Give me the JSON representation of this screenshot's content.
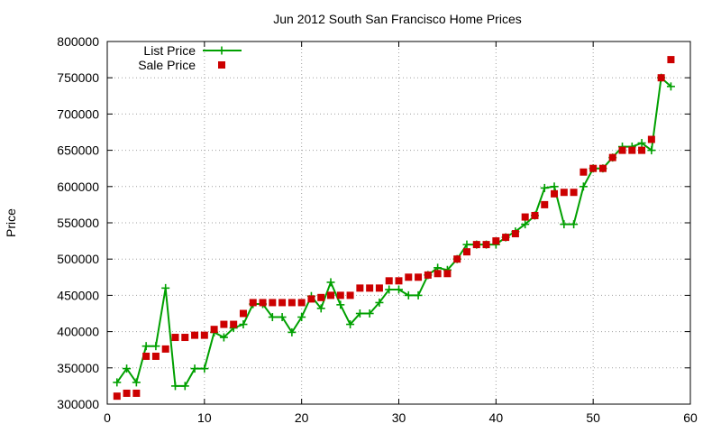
{
  "chart_data": {
    "type": "line",
    "title": "Jun 2012 South San Francisco Home Prices",
    "xlabel": "",
    "ylabel": "Price",
    "xlim": [
      0,
      60
    ],
    "ylim": [
      300000,
      800000
    ],
    "xticks": [
      0,
      10,
      20,
      30,
      40,
      50,
      60
    ],
    "yticks": [
      300000,
      350000,
      400000,
      450000,
      500000,
      550000,
      600000,
      650000,
      700000,
      750000,
      800000
    ],
    "grid": true,
    "legend": "top-left",
    "series": [
      {
        "name": "List Price",
        "style": "line-markers-plus",
        "color": "#00a000",
        "points": [
          [
            1,
            330000
          ],
          [
            2,
            349000
          ],
          [
            3,
            330000
          ],
          [
            4,
            380000
          ],
          [
            5,
            380000
          ],
          [
            6,
            460000
          ],
          [
            7,
            325000
          ],
          [
            8,
            325000
          ],
          [
            9,
            349000
          ],
          [
            10,
            349000
          ],
          [
            11,
            399000
          ],
          [
            12,
            392000
          ],
          [
            13,
            405000
          ],
          [
            14,
            410000
          ],
          [
            15,
            438000
          ],
          [
            16,
            438000
          ],
          [
            17,
            420000
          ],
          [
            18,
            420000
          ],
          [
            19,
            399000
          ],
          [
            20,
            420000
          ],
          [
            21,
            449000
          ],
          [
            22,
            432000
          ],
          [
            23,
            468000
          ],
          [
            24,
            437000
          ],
          [
            25,
            410000
          ],
          [
            26,
            425000
          ],
          [
            27,
            425000
          ],
          [
            28,
            440000
          ],
          [
            29,
            458000
          ],
          [
            30,
            458000
          ],
          [
            31,
            450000
          ],
          [
            32,
            450000
          ],
          [
            33,
            478000
          ],
          [
            34,
            488000
          ],
          [
            35,
            485000
          ],
          [
            36,
            500000
          ],
          [
            37,
            520000
          ],
          [
            38,
            520000
          ],
          [
            39,
            520000
          ],
          [
            40,
            520000
          ],
          [
            41,
            530000
          ],
          [
            42,
            538000
          ],
          [
            43,
            548000
          ],
          [
            44,
            560000
          ],
          [
            45,
            598000
          ],
          [
            46,
            600000
          ],
          [
            47,
            548000
          ],
          [
            48,
            548000
          ],
          [
            49,
            600000
          ],
          [
            50,
            625000
          ],
          [
            51,
            625000
          ],
          [
            52,
            640000
          ],
          [
            53,
            655000
          ],
          [
            54,
            655000
          ],
          [
            55,
            660000
          ],
          [
            56,
            650000
          ],
          [
            57,
            750000
          ],
          [
            58,
            738000
          ]
        ]
      },
      {
        "name": "Sale Price",
        "style": "markers-square",
        "color": "#cc0000",
        "points": [
          [
            1,
            311000
          ],
          [
            2,
            315000
          ],
          [
            3,
            315000
          ],
          [
            4,
            366000
          ],
          [
            5,
            366000
          ],
          [
            6,
            376000
          ],
          [
            7,
            392000
          ],
          [
            8,
            392000
          ],
          [
            9,
            395000
          ],
          [
            10,
            395000
          ],
          [
            11,
            403000
          ],
          [
            12,
            410000
          ],
          [
            13,
            410000
          ],
          [
            14,
            425000
          ],
          [
            15,
            440000
          ],
          [
            16,
            440000
          ],
          [
            17,
            440000
          ],
          [
            18,
            440000
          ],
          [
            19,
            440000
          ],
          [
            20,
            440000
          ],
          [
            21,
            445000
          ],
          [
            22,
            447000
          ],
          [
            23,
            450000
          ],
          [
            24,
            450000
          ],
          [
            25,
            450000
          ],
          [
            26,
            460000
          ],
          [
            27,
            460000
          ],
          [
            28,
            460000
          ],
          [
            29,
            470000
          ],
          [
            30,
            470000
          ],
          [
            31,
            475000
          ],
          [
            32,
            475000
          ],
          [
            33,
            478000
          ],
          [
            34,
            480000
          ],
          [
            35,
            480000
          ],
          [
            36,
            500000
          ],
          [
            37,
            510000
          ],
          [
            38,
            520000
          ],
          [
            39,
            520000
          ],
          [
            40,
            525000
          ],
          [
            41,
            530000
          ],
          [
            42,
            535000
          ],
          [
            43,
            558000
          ],
          [
            44,
            560000
          ],
          [
            45,
            575000
          ],
          [
            46,
            590000
          ],
          [
            47,
            592000
          ],
          [
            48,
            592000
          ],
          [
            49,
            620000
          ],
          [
            50,
            625000
          ],
          [
            51,
            625000
          ],
          [
            52,
            640000
          ],
          [
            53,
            650000
          ],
          [
            54,
            650000
          ],
          [
            55,
            650000
          ],
          [
            56,
            665000
          ],
          [
            57,
            750000
          ],
          [
            58,
            775000
          ]
        ]
      }
    ]
  }
}
